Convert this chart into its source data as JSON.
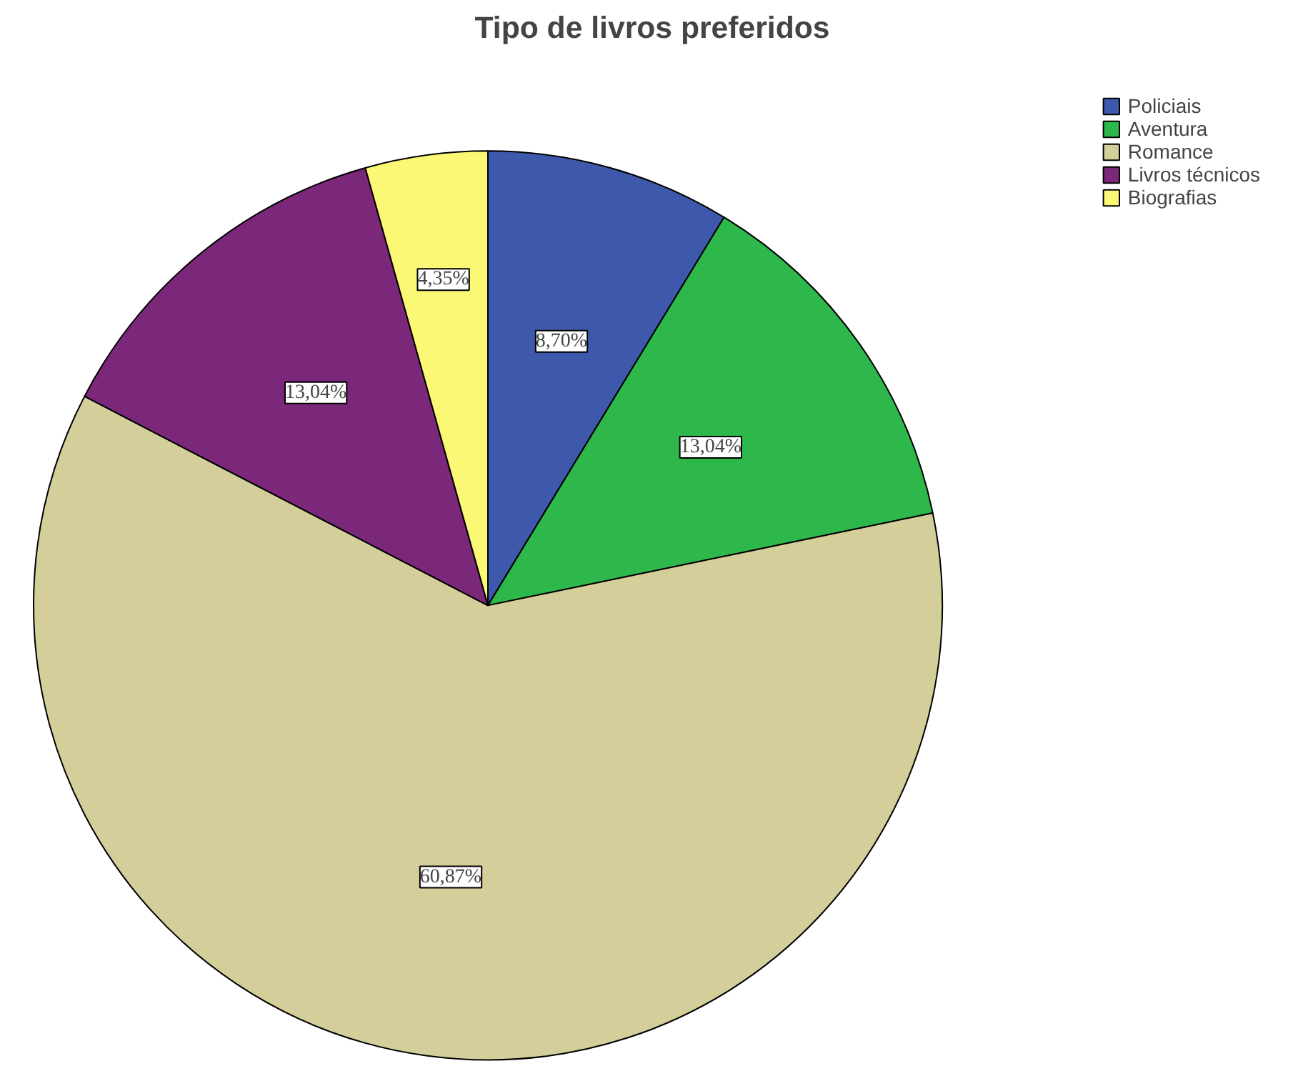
{
  "chart_data": {
    "type": "pie",
    "title": "Tipo de livros preferidos",
    "categories": [
      "Policiais",
      "Aventura",
      "Romance",
      "Livros técnicos",
      "Biografias"
    ],
    "values": [
      8.7,
      13.04,
      60.87,
      13.04,
      4.35
    ],
    "value_labels": [
      "8,70%",
      "13,04%",
      "60,87%",
      "13,04%",
      "4,35%"
    ],
    "colors": [
      "#3e58ac",
      "#2eb84c",
      "#d4ce9b",
      "#7b287b",
      "#fbf876"
    ],
    "legend": "top right"
  }
}
